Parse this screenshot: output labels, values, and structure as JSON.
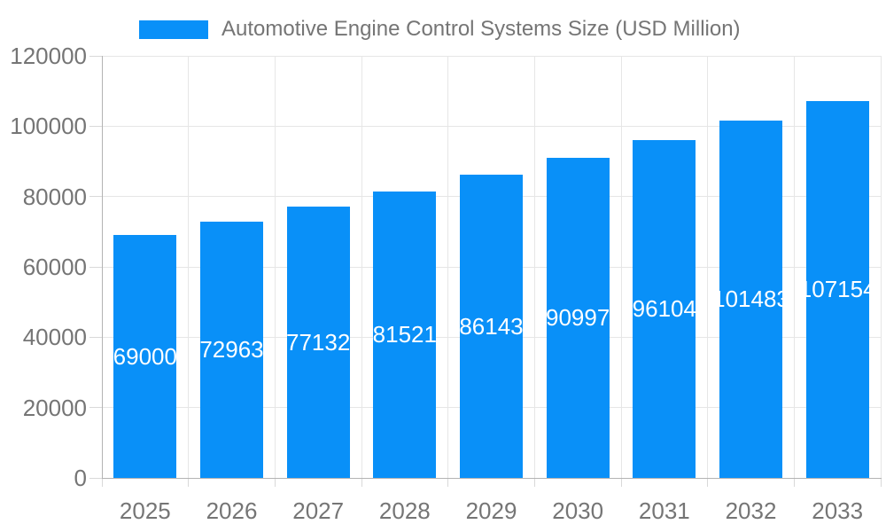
{
  "legend": {
    "label": "Automotive Engine Control Systems Size (USD Million)"
  },
  "colors": {
    "bar": "#0990F8",
    "text": "#757575",
    "grid": "#e6e6e6",
    "axis": "#b3b3b3",
    "tick": "#d9d9d9",
    "annotation": "#ffffff",
    "background": "#ffffff"
  },
  "chart_data": {
    "type": "bar",
    "title": "Automotive Engine Control Systems Size (USD Million)",
    "series_name": "Automotive Engine Control Systems Size (USD Million)",
    "categories": [
      "2025",
      "2026",
      "2027",
      "2028",
      "2029",
      "2030",
      "2031",
      "2032",
      "2033"
    ],
    "values": [
      69000,
      72963,
      77132,
      81521,
      86143,
      90997,
      96104,
      101483,
      107154
    ],
    "value_labels": [
      "69000",
      "72963",
      "77132",
      "81521",
      "86143",
      "90997",
      "96104",
      "101483",
      "107154"
    ],
    "xlabel": "",
    "ylabel": "",
    "ylim": [
      0,
      120000
    ],
    "yticks": [
      0,
      20000,
      40000,
      60000,
      80000,
      100000,
      120000
    ],
    "ytick_labels": [
      "0",
      "20000",
      "40000",
      "60000",
      "80000",
      "100000",
      "120000"
    ],
    "grid": true,
    "legend_position": "top",
    "value_labels_inside_bars": true
  }
}
